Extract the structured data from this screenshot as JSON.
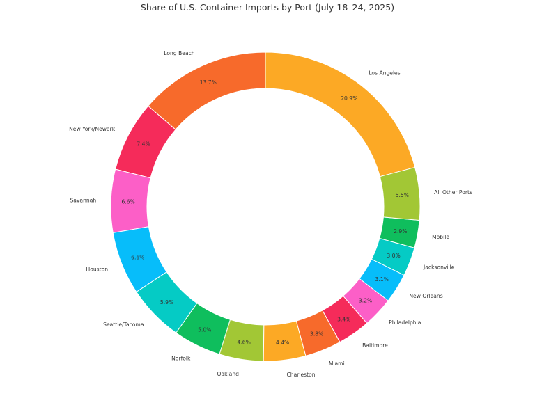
{
  "chart_data": {
    "type": "pie",
    "variant": "donut",
    "title": "Share of U.S. Container Imports by Port (July 18–24, 2025)",
    "labels": [
      "Los Angeles",
      "Long Beach",
      "New York/Newark",
      "Savannah",
      "Houston",
      "Seattle/Tacoma",
      "Norfolk",
      "Oakland",
      "Charleston",
      "Miami",
      "Baltimore",
      "Philadelphia",
      "New Orleans",
      "Jacksonville",
      "Mobile",
      "All Other Ports"
    ],
    "values": [
      20.9,
      13.7,
      7.4,
      6.6,
      6.6,
      5.9,
      5.0,
      4.6,
      4.4,
      3.8,
      3.4,
      3.2,
      3.1,
      3.0,
      2.9,
      5.5
    ],
    "value_labels": [
      "20.9%",
      "13.7%",
      "7.4%",
      "6.6%",
      "6.6%",
      "5.9%",
      "5.0%",
      "4.6%",
      "4.4%",
      "3.8%",
      "3.4%",
      "3.2%",
      "3.1%",
      "3.0%",
      "2.9%",
      "5.5%"
    ],
    "colors": [
      "#fca925",
      "#f76a2b",
      "#f52b5a",
      "#fc5fc7",
      "#07bdfa",
      "#05cbc5",
      "#0fbe5d",
      "#a2c735",
      "#fca925",
      "#f76a2b",
      "#f52b5a",
      "#fc5fc7",
      "#07bdfa",
      "#05cbc5",
      "#0fbe5d",
      "#a2c735"
    ],
    "unit": "%",
    "legend": "none"
  }
}
